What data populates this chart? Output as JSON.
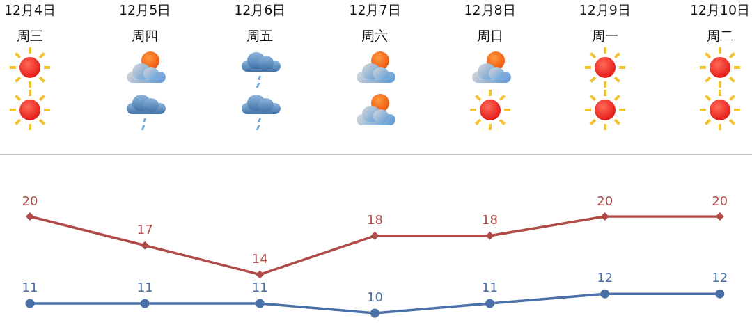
{
  "chart_data": {
    "type": "line",
    "categories": [
      "12月4日",
      "12月5日",
      "12月6日",
      "12月7日",
      "12月8日",
      "12月9日",
      "12月10日"
    ],
    "series": [
      {
        "color": "#b04a48",
        "marker": "diamond",
        "values": [
          20,
          17,
          14,
          18,
          18,
          20,
          20
        ]
      },
      {
        "color": "#4a70a8",
        "marker": "circle",
        "values": [
          11,
          11,
          11,
          10,
          11,
          12,
          12
        ]
      }
    ],
    "annotations": [
      "周三",
      "周四",
      "周五",
      "周六",
      "周日",
      "周一",
      "周二"
    ],
    "data_labels": true,
    "line_style": "solid"
  }
}
